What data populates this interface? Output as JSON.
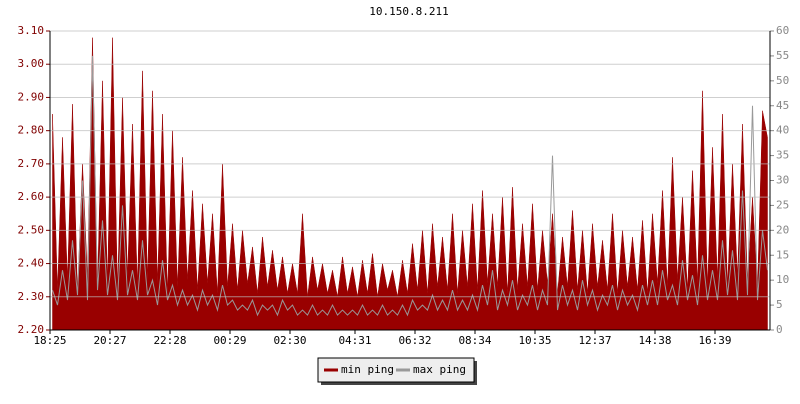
{
  "chart_data": {
    "type": "line",
    "title": "10.150.8.211",
    "categories": [
      "18:25",
      null,
      null,
      null,
      null,
      null,
      null,
      null,
      null,
      null,
      null,
      null,
      "20:27",
      null,
      null,
      null,
      null,
      null,
      null,
      null,
      null,
      null,
      null,
      null,
      "22:28",
      null,
      null,
      null,
      null,
      null,
      null,
      null,
      null,
      null,
      null,
      null,
      "00:29",
      null,
      null,
      null,
      null,
      null,
      null,
      null,
      null,
      null,
      null,
      null,
      "02:30",
      null,
      null,
      null,
      null,
      null,
      null,
      null,
      null,
      null,
      null,
      null,
      null,
      "04:31",
      null,
      null,
      null,
      null,
      null,
      null,
      null,
      null,
      null,
      null,
      null,
      "06:32",
      null,
      null,
      null,
      null,
      null,
      null,
      null,
      null,
      null,
      null,
      null,
      "08:34",
      null,
      null,
      null,
      null,
      null,
      null,
      null,
      null,
      null,
      null,
      null,
      "10:35",
      null,
      null,
      null,
      null,
      null,
      null,
      null,
      null,
      null,
      null,
      null,
      "12:37",
      null,
      null,
      null,
      null,
      null,
      null,
      null,
      null,
      null,
      null,
      null,
      "14:38",
      null,
      null,
      null,
      null,
      null,
      null,
      null,
      null,
      null,
      null,
      null,
      "16:39",
      null,
      null,
      null,
      null,
      null,
      null,
      null,
      null,
      null,
      null
    ],
    "series": [
      {
        "name": "min ping",
        "color": "#990000",
        "fill": true,
        "values": [
          2.85,
          2.32,
          2.78,
          2.35,
          2.88,
          2.31,
          2.7,
          2.36,
          3.08,
          2.33,
          2.95,
          2.34,
          3.08,
          2.32,
          2.9,
          2.36,
          2.82,
          2.33,
          2.98,
          2.35,
          2.92,
          2.34,
          2.85,
          2.31,
          2.8,
          2.33,
          2.72,
          2.35,
          2.62,
          2.32,
          2.58,
          2.34,
          2.55,
          2.31,
          2.7,
          2.33,
          2.52,
          2.32,
          2.5,
          2.34,
          2.45,
          2.31,
          2.48,
          2.33,
          2.44,
          2.32,
          2.42,
          2.31,
          2.4,
          2.31,
          2.55,
          2.3,
          2.42,
          2.32,
          2.4,
          2.31,
          2.38,
          2.3,
          2.42,
          2.31,
          2.39,
          2.3,
          2.41,
          2.31,
          2.43,
          2.3,
          2.4,
          2.32,
          2.38,
          2.3,
          2.41,
          2.31,
          2.46,
          2.32,
          2.5,
          2.31,
          2.52,
          2.33,
          2.48,
          2.32,
          2.55,
          2.31,
          2.5,
          2.33,
          2.58,
          2.32,
          2.62,
          2.34,
          2.55,
          2.33,
          2.6,
          2.31,
          2.63,
          2.32,
          2.52,
          2.33,
          2.58,
          2.32,
          2.5,
          2.34,
          2.55,
          2.31,
          2.48,
          2.33,
          2.56,
          2.32,
          2.5,
          2.31,
          2.52,
          2.33,
          2.47,
          2.32,
          2.55,
          2.31,
          2.5,
          2.33,
          2.48,
          2.32,
          2.53,
          2.31,
          2.55,
          2.34,
          2.62,
          2.33,
          2.72,
          2.35,
          2.6,
          2.32,
          2.68,
          2.34,
          2.92,
          2.33,
          2.75,
          2.35,
          2.85,
          2.33,
          2.7,
          2.36,
          2.82,
          2.34,
          2.6,
          2.33,
          2.86,
          2.78
        ]
      },
      {
        "name": "max ping",
        "color": "#999999",
        "axis": "y2",
        "values": [
          8,
          5,
          12,
          6,
          18,
          7,
          30,
          6,
          55,
          8,
          22,
          7,
          15,
          6,
          25,
          7,
          12,
          6,
          18,
          7,
          10,
          5,
          14,
          6,
          9,
          5,
          8,
          5,
          7,
          4,
          8,
          5,
          7,
          4,
          9,
          5,
          6,
          4,
          5,
          4,
          6,
          3,
          5,
          4,
          5,
          3,
          6,
          4,
          5,
          3,
          4,
          3,
          5,
          3,
          4,
          3,
          5,
          3,
          4,
          3,
          4,
          3,
          5,
          3,
          4,
          3,
          5,
          3,
          4,
          3,
          5,
          3,
          6,
          4,
          5,
          4,
          7,
          4,
          6,
          4,
          8,
          4,
          6,
          4,
          7,
          4,
          9,
          5,
          12,
          4,
          8,
          5,
          10,
          4,
          7,
          5,
          9,
          4,
          8,
          5,
          35,
          4,
          9,
          5,
          8,
          4,
          10,
          5,
          8,
          4,
          7,
          5,
          9,
          4,
          8,
          5,
          7,
          4,
          9,
          5,
          10,
          5,
          12,
          6,
          9,
          5,
          14,
          6,
          11,
          5,
          15,
          6,
          12,
          6,
          18,
          7,
          16,
          6,
          28,
          7,
          45,
          6,
          20,
          12
        ]
      }
    ],
    "ylim": [
      2.2,
      3.1
    ],
    "yticks": [
      {
        "value": 2.2,
        "label": "2.20"
      },
      {
        "value": 2.3,
        "label": "2.30"
      },
      {
        "value": 2.4,
        "label": "2.40"
      },
      {
        "value": 2.5,
        "label": "2.50"
      },
      {
        "value": 2.6,
        "label": "2.60"
      },
      {
        "value": 2.7,
        "label": "2.70"
      },
      {
        "value": 2.8,
        "label": "2.80"
      },
      {
        "value": 2.9,
        "label": "2.90"
      },
      {
        "value": 3.0,
        "label": "3.00"
      },
      {
        "value": 3.1,
        "label": "3.10"
      }
    ],
    "y2lim": [
      0,
      60
    ],
    "y2ticks": [
      0,
      5,
      10,
      15,
      20,
      25,
      30,
      35,
      40,
      45,
      50,
      55,
      60
    ],
    "grid": true,
    "legend": "bottom"
  }
}
